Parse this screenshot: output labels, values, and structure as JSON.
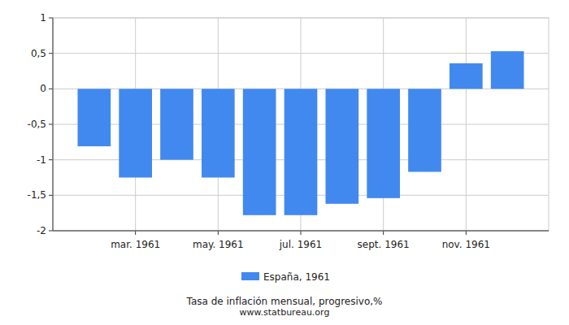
{
  "chart_data": {
    "type": "bar",
    "title": "Tasa de inflación mensual, progresivo,%",
    "subtitle": "www.statbureau.org",
    "categories": [
      null,
      "mar. 1961",
      null,
      "may. 1961",
      null,
      "jul. 1961",
      null,
      "sept. 1961",
      null,
      "nov. 1961",
      null
    ],
    "series": [
      {
        "name": "España, 1961",
        "color": "#4189ef",
        "values": [
          -0.81,
          -1.25,
          -1.0,
          -1.25,
          -1.78,
          -1.78,
          -1.62,
          -1.54,
          -1.17,
          0.36,
          0.53
        ]
      }
    ],
    "ylim": [
      -2,
      1
    ],
    "yticks": [
      {
        "value": -2,
        "label": "-2"
      },
      {
        "value": -1.5,
        "label": "-1,5"
      },
      {
        "value": -1,
        "label": "-1"
      },
      {
        "value": -0.5,
        "label": "-0,5"
      },
      {
        "value": 0,
        "label": "0"
      },
      {
        "value": 0.5,
        "label": "0,5"
      },
      {
        "value": 1,
        "label": "1"
      }
    ],
    "grid": true,
    "legend": "bottom"
  }
}
